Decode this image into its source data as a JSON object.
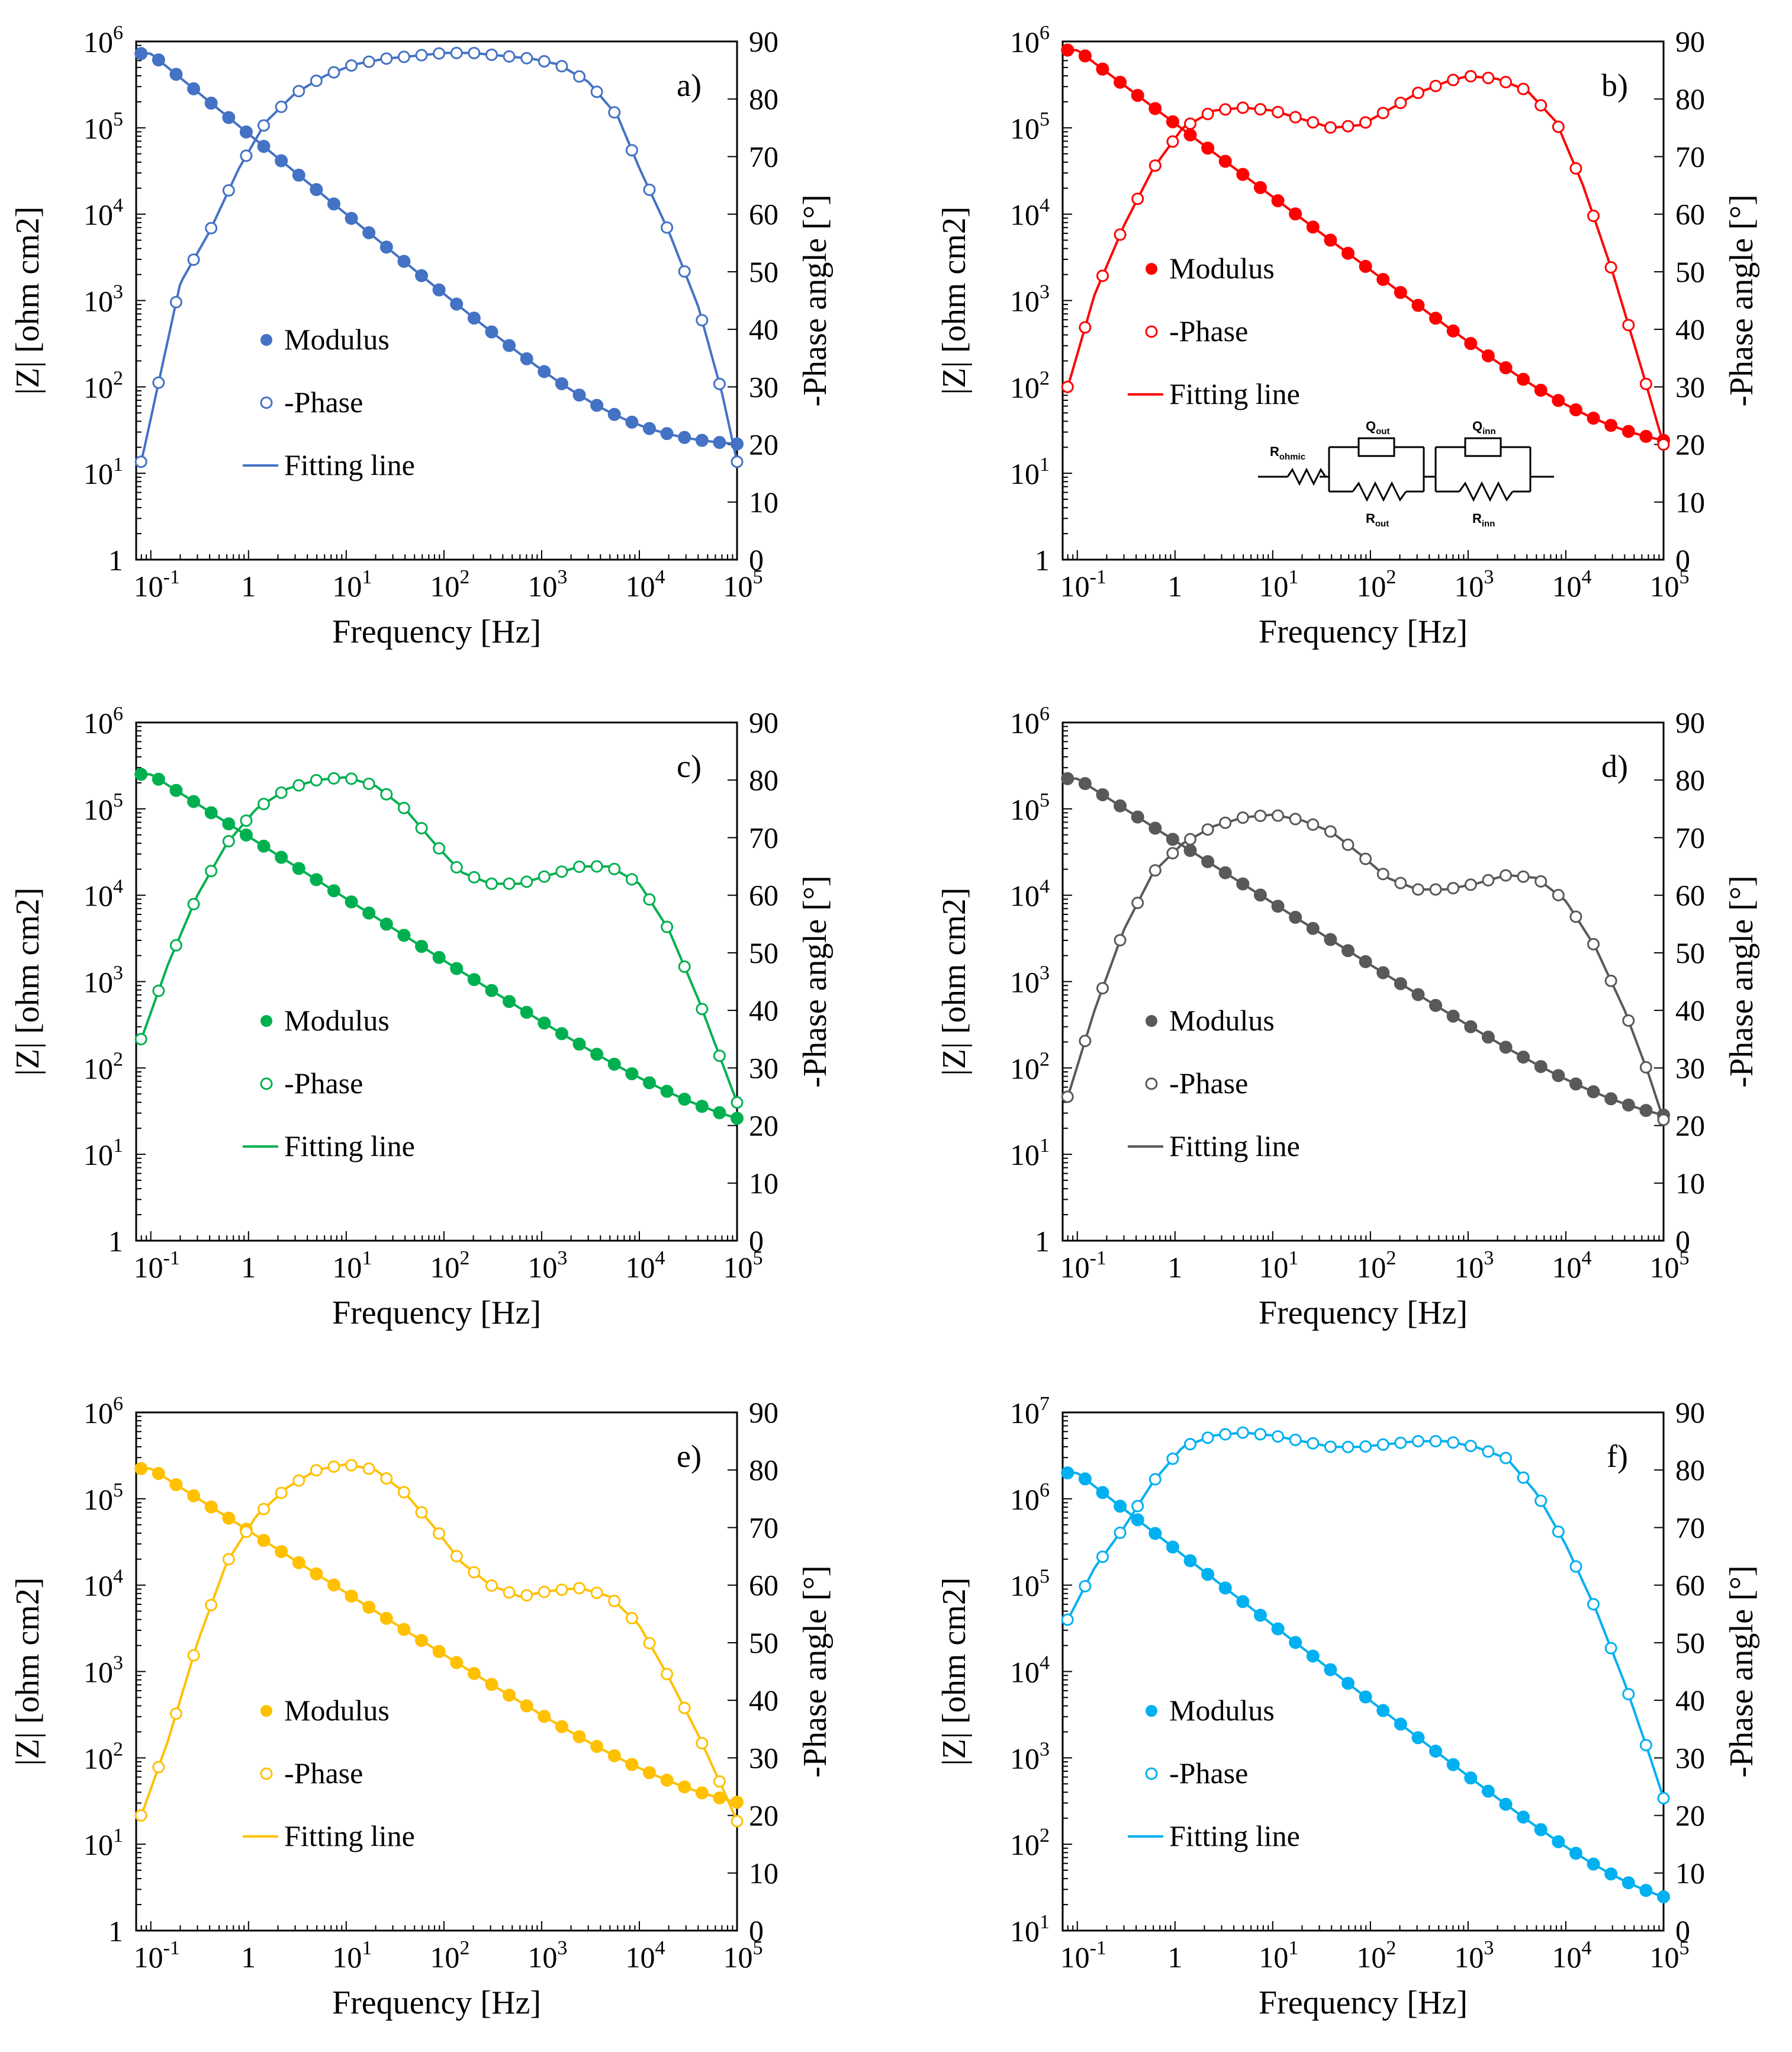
{
  "chart_data": [
    {
      "type": "scatter",
      "panel": "a)",
      "color": "#4472C4",
      "xlabel": "Frequency [Hz]",
      "ylabel_left": "|Z| [ohm cm2]",
      "ylabel_right": "-Phase angle [°]",
      "x_log_range": [
        -1.15,
        5
      ],
      "y_left_log_range": [
        0,
        6
      ],
      "y_right_range": [
        0,
        90
      ],
      "legend": [
        "Modulus",
        "-Phase",
        "Fitting line"
      ],
      "modulus": {
        "start_log": 5.86,
        "end_log": 1.3,
        "ohmic_log": 1.3,
        "slope": -0.93,
        "f0": 0.1
      },
      "phase_points": [
        {
          "f": 0.08,
          "v": 17
        },
        {
          "f": 0.2,
          "v": 48
        },
        {
          "f": 0.4,
          "v": 57
        },
        {
          "f": 0.8,
          "v": 68
        },
        {
          "f": 1.5,
          "v": 76
        },
        {
          "f": 3,
          "v": 81
        },
        {
          "f": 6,
          "v": 84
        },
        {
          "f": 12,
          "v": 86
        },
        {
          "f": 25,
          "v": 87
        },
        {
          "f": 50,
          "v": 87.5
        },
        {
          "f": 100,
          "v": 88
        },
        {
          "f": 200,
          "v": 88
        },
        {
          "f": 400,
          "v": 87.5
        },
        {
          "f": 800,
          "v": 87
        },
        {
          "f": 1500,
          "v": 86
        },
        {
          "f": 3000,
          "v": 83
        },
        {
          "f": 6000,
          "v": 77
        },
        {
          "f": 10000,
          "v": 68
        },
        {
          "f": 20000,
          "v": 57
        },
        {
          "f": 40000,
          "v": 44
        },
        {
          "f": 70000,
          "v": 29
        },
        {
          "f": 100000,
          "v": 17
        }
      ]
    },
    {
      "type": "scatter",
      "panel": "b)",
      "color": "#FF0000",
      "xlabel": "Frequency [Hz]",
      "ylabel_left": "|Z| [ohm cm2]",
      "ylabel_right": "-Phase angle [°]",
      "x_log_range": [
        -1.15,
        5
      ],
      "y_left_log_range": [
        0,
        6
      ],
      "y_right_range": [
        0,
        90
      ],
      "legend": [
        "Modulus",
        "-Phase",
        "Fitting line"
      ],
      "circuit_labels": {
        "r_ohmic": "R",
        "r_ohmic_sub": "ohmic",
        "q_out": "Q",
        "q_out_sub": "out",
        "r_out": "R",
        "r_out_sub": "out",
        "q_inn": "Q",
        "q_inn_sub": "inn",
        "r_inn": "R",
        "r_inn_sub": "inn"
      },
      "modulus": {
        "start_log": 5.9,
        "end_log": 1.25,
        "ohmic_log": 1.25,
        "slope": -0.85,
        "f0": 0.1
      },
      "phase_points": [
        {
          "f": 0.08,
          "v": 30
        },
        {
          "f": 0.15,
          "v": 46
        },
        {
          "f": 0.3,
          "v": 58
        },
        {
          "f": 0.6,
          "v": 68
        },
        {
          "f": 1.2,
          "v": 75
        },
        {
          "f": 2.5,
          "v": 78
        },
        {
          "f": 5,
          "v": 78.5
        },
        {
          "f": 10,
          "v": 78
        },
        {
          "f": 20,
          "v": 76.5
        },
        {
          "f": 40,
          "v": 75
        },
        {
          "f": 80,
          "v": 75.5
        },
        {
          "f": 150,
          "v": 78
        },
        {
          "f": 300,
          "v": 81
        },
        {
          "f": 600,
          "v": 83
        },
        {
          "f": 1000,
          "v": 84
        },
        {
          "f": 2000,
          "v": 83.5
        },
        {
          "f": 4000,
          "v": 81.5
        },
        {
          "f": 8000,
          "v": 76
        },
        {
          "f": 15000,
          "v": 65
        },
        {
          "f": 30000,
          "v": 50
        },
        {
          "f": 60000,
          "v": 33
        },
        {
          "f": 100000,
          "v": 20
        }
      ]
    },
    {
      "type": "scatter",
      "panel": "c)",
      "color": "#00B050",
      "xlabel": "Frequency [Hz]",
      "ylabel_left": "|Z| [ohm cm2]",
      "ylabel_right": "-Phase angle [°]",
      "x_log_range": [
        -1.15,
        5
      ],
      "y_left_log_range": [
        0,
        6
      ],
      "y_right_range": [
        0,
        90
      ],
      "legend": [
        "Modulus",
        "-Phase",
        "Fitting line"
      ],
      "modulus": {
        "start_log": 5.4,
        "end_log": 1.15,
        "ohmic_log": 1.15,
        "slope": -0.72,
        "f0": 0.1
      },
      "phase_points": [
        {
          "f": 0.08,
          "v": 35
        },
        {
          "f": 0.15,
          "v": 48
        },
        {
          "f": 0.3,
          "v": 60
        },
        {
          "f": 0.6,
          "v": 69
        },
        {
          "f": 1.2,
          "v": 75
        },
        {
          "f": 2.5,
          "v": 78.5
        },
        {
          "f": 5,
          "v": 80
        },
        {
          "f": 10,
          "v": 80.5
        },
        {
          "f": 20,
          "v": 79
        },
        {
          "f": 40,
          "v": 75
        },
        {
          "f": 80,
          "v": 69
        },
        {
          "f": 150,
          "v": 64
        },
        {
          "f": 300,
          "v": 62
        },
        {
          "f": 600,
          "v": 62
        },
        {
          "f": 1200,
          "v": 63.5
        },
        {
          "f": 2500,
          "v": 65
        },
        {
          "f": 5000,
          "v": 65
        },
        {
          "f": 10000,
          "v": 62
        },
        {
          "f": 20000,
          "v": 54
        },
        {
          "f": 40000,
          "v": 42
        },
        {
          "f": 70000,
          "v": 31
        },
        {
          "f": 100000,
          "v": 24
        }
      ]
    },
    {
      "type": "scatter",
      "panel": "d)",
      "color": "#595959",
      "xlabel": "Frequency [Hz]",
      "ylabel_left": "|Z| [ohm cm2]",
      "ylabel_right": "-Phase angle [°]",
      "x_log_range": [
        -1.15,
        5
      ],
      "y_left_log_range": [
        0,
        6
      ],
      "y_right_range": [
        0,
        90
      ],
      "legend": [
        "Modulus",
        "-Phase",
        "Fitting line"
      ],
      "modulus": {
        "start_log": 5.35,
        "end_log": 1.25,
        "ohmic_log": 1.25,
        "slope": -0.72,
        "f0": 0.1
      },
      "phase_points": [
        {
          "f": 0.08,
          "v": 25
        },
        {
          "f": 0.15,
          "v": 40
        },
        {
          "f": 0.3,
          "v": 54
        },
        {
          "f": 0.6,
          "v": 64
        },
        {
          "f": 1.2,
          "v": 69
        },
        {
          "f": 2.5,
          "v": 72
        },
        {
          "f": 5,
          "v": 73.5
        },
        {
          "f": 10,
          "v": 74
        },
        {
          "f": 20,
          "v": 73
        },
        {
          "f": 40,
          "v": 71
        },
        {
          "f": 80,
          "v": 67
        },
        {
          "f": 150,
          "v": 63
        },
        {
          "f": 300,
          "v": 61
        },
        {
          "f": 600,
          "v": 61
        },
        {
          "f": 1200,
          "v": 62
        },
        {
          "f": 2500,
          "v": 63.5
        },
        {
          "f": 5000,
          "v": 63
        },
        {
          "f": 10000,
          "v": 59
        },
        {
          "f": 20000,
          "v": 51
        },
        {
          "f": 40000,
          "v": 40
        },
        {
          "f": 70000,
          "v": 29
        },
        {
          "f": 100000,
          "v": 21
        }
      ]
    },
    {
      "type": "scatter",
      "panel": "e)",
      "color": "#FFC000",
      "xlabel": "Frequency [Hz]",
      "ylabel_left": "|Z| [ohm cm2]",
      "ylabel_right": "-Phase angle [°]",
      "x_log_range": [
        -1.15,
        5
      ],
      "y_left_log_range": [
        0,
        6
      ],
      "y_right_range": [
        0,
        90
      ],
      "legend": [
        "Modulus",
        "-Phase",
        "Fitting line"
      ],
      "modulus": {
        "start_log": 5.35,
        "end_log": 1.3,
        "ohmic_log": 1.3,
        "slope": -0.72,
        "f0": 0.1
      },
      "phase_points": [
        {
          "f": 0.08,
          "v": 20
        },
        {
          "f": 0.15,
          "v": 33
        },
        {
          "f": 0.3,
          "v": 50
        },
        {
          "f": 0.6,
          "v": 64
        },
        {
          "f": 1.2,
          "v": 72
        },
        {
          "f": 2.5,
          "v": 77
        },
        {
          "f": 5,
          "v": 80
        },
        {
          "f": 10,
          "v": 81
        },
        {
          "f": 20,
          "v": 80
        },
        {
          "f": 40,
          "v": 76
        },
        {
          "f": 80,
          "v": 70
        },
        {
          "f": 150,
          "v": 64
        },
        {
          "f": 300,
          "v": 60
        },
        {
          "f": 600,
          "v": 58
        },
        {
          "f": 1200,
          "v": 59
        },
        {
          "f": 2500,
          "v": 59.5
        },
        {
          "f": 5000,
          "v": 58
        },
        {
          "f": 10000,
          "v": 53
        },
        {
          "f": 20000,
          "v": 44
        },
        {
          "f": 40000,
          "v": 34
        },
        {
          "f": 70000,
          "v": 25
        },
        {
          "f": 100000,
          "v": 19
        }
      ]
    },
    {
      "type": "scatter",
      "panel": "f)",
      "color": "#00B0F0",
      "xlabel": "Frequency [Hz]",
      "ylabel_left": "|Z| [ohm cm2]",
      "ylabel_right": "-Phase angle [°]",
      "x_log_range": [
        -1.15,
        5
      ],
      "y_left_log_range": [
        1,
        7
      ],
      "y_right_range": [
        0,
        90
      ],
      "legend": [
        "Modulus",
        "-Phase",
        "Fitting line"
      ],
      "modulus": {
        "start_log": 6.3,
        "end_log": 1.15,
        "ohmic_log": 1.15,
        "slope": -0.88,
        "f0": 0.1
      },
      "phase_points": [
        {
          "f": 0.08,
          "v": 54
        },
        {
          "f": 0.15,
          "v": 63
        },
        {
          "f": 0.3,
          "v": 70
        },
        {
          "f": 0.6,
          "v": 78
        },
        {
          "f": 1.2,
          "v": 84
        },
        {
          "f": 2.5,
          "v": 86
        },
        {
          "f": 5,
          "v": 86.5
        },
        {
          "f": 10,
          "v": 86
        },
        {
          "f": 20,
          "v": 85
        },
        {
          "f": 40,
          "v": 84
        },
        {
          "f": 80,
          "v": 84
        },
        {
          "f": 150,
          "v": 84.5
        },
        {
          "f": 300,
          "v": 85
        },
        {
          "f": 600,
          "v": 85
        },
        {
          "f": 1200,
          "v": 84
        },
        {
          "f": 2500,
          "v": 82
        },
        {
          "f": 5000,
          "v": 76
        },
        {
          "f": 10000,
          "v": 67
        },
        {
          "f": 20000,
          "v": 56
        },
        {
          "f": 40000,
          "v": 43
        },
        {
          "f": 70000,
          "v": 31
        },
        {
          "f": 100000,
          "v": 23
        }
      ]
    }
  ]
}
